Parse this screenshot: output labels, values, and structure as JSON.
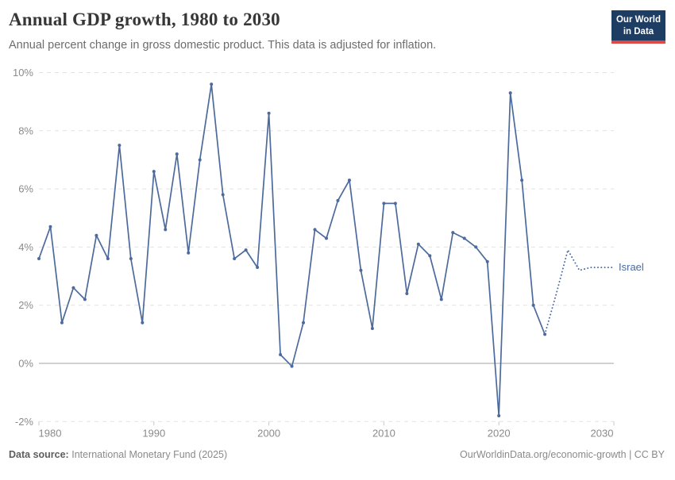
{
  "header": {
    "title": "Annual GDP growth, 1980 to 2030",
    "subtitle": "Annual percent change in gross domestic product. This data is adjusted for inflation.",
    "logo": {
      "line1": "Our World",
      "line2": "in Data"
    }
  },
  "chart_data": {
    "type": "line",
    "title": "Annual GDP growth, 1980 to 2030",
    "xlabel": "",
    "ylabel": "",
    "xlim": [
      1980,
      2030
    ],
    "ylim": [
      -2,
      10
    ],
    "grid": "horizontal dashed, solid zero line",
    "legend_position": "end-of-line label",
    "colors": {
      "line": "#4c6a9c",
      "grid": "#e2e2e2",
      "zero_line": "#a3a3a3",
      "axis_text": "#8b8b8b",
      "tick": "#c8c8c8"
    },
    "yticks": [
      {
        "value": 10,
        "label": "10%"
      },
      {
        "value": 8,
        "label": "8%"
      },
      {
        "value": 6,
        "label": "6%"
      },
      {
        "value": 4,
        "label": "4%"
      },
      {
        "value": 2,
        "label": "2%"
      },
      {
        "value": 0,
        "label": "0%"
      },
      {
        "value": -2,
        "label": "-2%"
      }
    ],
    "xticks": [
      {
        "value": 1980,
        "label": "1980"
      },
      {
        "value": 1990,
        "label": "1990"
      },
      {
        "value": 2000,
        "label": "2000"
      },
      {
        "value": 2010,
        "label": "2010"
      },
      {
        "value": 2020,
        "label": "2020"
      },
      {
        "value": 2030,
        "label": "2030"
      }
    ],
    "series": [
      {
        "name": "Israel",
        "style": "solid",
        "x": [
          1980,
          1981,
          1982,
          1983,
          1984,
          1985,
          1986,
          1987,
          1988,
          1989,
          1990,
          1991,
          1992,
          1993,
          1994,
          1995,
          1996,
          1997,
          1998,
          1999,
          2000,
          2001,
          2002,
          2003,
          2004,
          2005,
          2006,
          2007,
          2008,
          2009,
          2010,
          2011,
          2012,
          2013,
          2014,
          2015,
          2016,
          2017,
          2018,
          2019,
          2020,
          2021,
          2022,
          2023,
          2024
        ],
        "y": [
          3.6,
          4.7,
          1.4,
          2.6,
          2.2,
          4.4,
          3.6,
          7.5,
          3.6,
          1.4,
          6.6,
          4.6,
          7.2,
          3.8,
          7.0,
          9.6,
          5.8,
          3.6,
          3.9,
          3.3,
          8.6,
          0.3,
          -0.1,
          1.4,
          4.6,
          4.3,
          5.6,
          6.3,
          3.2,
          1.2,
          5.5,
          5.5,
          2.4,
          4.1,
          3.7,
          2.2,
          4.5,
          4.3,
          4.0,
          3.5,
          -1.8,
          9.3,
          6.3,
          2.0,
          1.0
        ]
      },
      {
        "name": "Israel (projection)",
        "style": "dotted",
        "x": [
          2024,
          2025,
          2026,
          2027,
          2028,
          2029,
          2030
        ],
        "y": [
          1.0,
          2.4,
          3.9,
          3.2,
          3.3,
          3.3,
          3.3
        ]
      }
    ]
  },
  "footer": {
    "datasource_label": "Data source:",
    "datasource_value": "International Monetary Fund (2025)",
    "credit": "OurWorldinData.org/economic-growth | CC BY"
  }
}
